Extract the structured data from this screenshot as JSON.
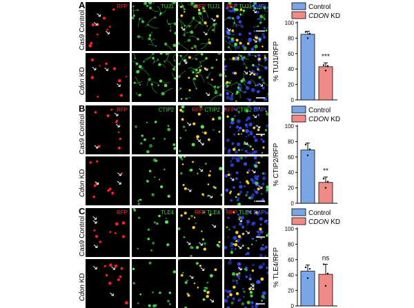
{
  "channels": {
    "rfp": "RFP",
    "tuj1": "TUJ1",
    "ctip2": "CTIP2",
    "tle4": "TLE4",
    "dapi": "DAPI"
  },
  "row_labels": {
    "control": "Cas9 Control",
    "kd_gene": "Cdon",
    "kd_suffix": "KD"
  },
  "legend": {
    "control": "Control",
    "kd_gene": "CDON",
    "kd_suffix": "KD"
  },
  "colors": {
    "control": "#7aa6e8",
    "kd": "#f08a86",
    "axis": "#000000"
  },
  "panels": [
    {
      "letter": "A",
      "marker": "tuj1"
    },
    {
      "letter": "B",
      "marker": "ctip2"
    },
    {
      "letter": "C",
      "marker": "tle4"
    }
  ],
  "chart_data": [
    {
      "type": "bar",
      "panel": "A",
      "categories": [
        "Control",
        "CDON KD"
      ],
      "values": [
        85,
        43
      ],
      "errors": [
        4,
        5
      ],
      "points": [
        [
          88,
          80,
          86
        ],
        [
          45,
          38,
          44
        ]
      ],
      "ylabel": "% TUJ1/RFP",
      "ylim": [
        0,
        100
      ],
      "yticks": [
        0,
        20,
        40,
        60,
        80,
        100
      ],
      "significance": "***"
    },
    {
      "type": "bar",
      "panel": "B",
      "categories": [
        "Control",
        "CDON KD"
      ],
      "values": [
        69,
        27
      ],
      "errors": [
        9,
        7
      ],
      "points": [
        [
          76,
          62,
          70
        ],
        [
          32,
          20,
          28
        ]
      ],
      "ylabel": "% CTIP2/RFP",
      "ylim": [
        0,
        100
      ],
      "yticks": [
        0,
        20,
        40,
        60,
        80,
        100
      ],
      "significance": "**"
    },
    {
      "type": "bar",
      "panel": "C",
      "categories": [
        "Control",
        "CDON KD"
      ],
      "values": [
        45,
        41
      ],
      "errors": [
        8,
        13
      ],
      "points": [
        [
          50,
          36,
          48
        ],
        [
          54,
          26,
          42
        ]
      ],
      "ylabel": "% TLE4/RFP",
      "ylim": [
        0,
        100
      ],
      "yticks": [
        0,
        20,
        40,
        60,
        80,
        100
      ],
      "significance": "ns"
    }
  ]
}
